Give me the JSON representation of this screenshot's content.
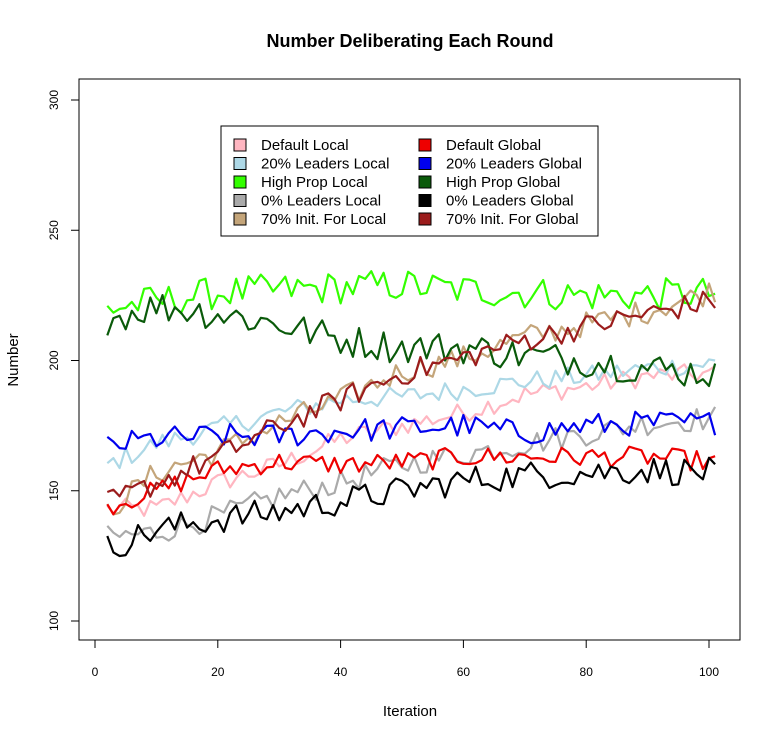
{
  "chart_data": {
    "type": "line",
    "title": "Number Deliberating Each Round",
    "xlabel": "Iteration",
    "ylabel": "Number",
    "xlim": [
      0,
      101
    ],
    "ylim": [
      100,
      300
    ],
    "x_ticks": [
      "0",
      "20",
      "40",
      "60",
      "80",
      "100"
    ],
    "y_ticks": [
      "100",
      "150",
      "200",
      "250",
      "300"
    ],
    "grid": false,
    "legend_position": "top-center",
    "series": [
      {
        "name": "Default Local",
        "color": "#ffb6c1",
        "x_range": [
          2,
          101
        ],
        "trend": [
          [
            2,
            143
          ],
          [
            10,
            143
          ],
          [
            20,
            153
          ],
          [
            30,
            160
          ],
          [
            40,
            170
          ],
          [
            50,
            175
          ],
          [
            60,
            180
          ],
          [
            70,
            187
          ],
          [
            80,
            190
          ],
          [
            90,
            194
          ],
          [
            101,
            195
          ]
        ],
        "noise": 2.5
      },
      {
        "name": "20% Leaders Local",
        "color": "#add8e6",
        "x_range": [
          2,
          101
        ],
        "trend": [
          [
            2,
            160
          ],
          [
            10,
            168
          ],
          [
            20,
            174
          ],
          [
            30,
            180
          ],
          [
            40,
            185
          ],
          [
            50,
            186
          ],
          [
            60,
            189
          ],
          [
            70,
            192
          ],
          [
            80,
            194
          ],
          [
            90,
            197
          ],
          [
            101,
            199
          ]
        ],
        "noise": 2.5
      },
      {
        "name": "High Prop Local",
        "color": "#33ff00",
        "x_range": [
          2,
          101
        ],
        "trend": [
          [
            2,
            220
          ],
          [
            20,
            226
          ],
          [
            40,
            228
          ],
          [
            50,
            229
          ],
          [
            60,
            227
          ],
          [
            70,
            226
          ],
          [
            80,
            225
          ],
          [
            90,
            225
          ],
          [
            101,
            226
          ]
        ],
        "noise": 4
      },
      {
        "name": "0% Leaders Local",
        "color": "#aaaaaa",
        "x_range": [
          2,
          101
        ],
        "trend": [
          [
            2,
            132
          ],
          [
            10,
            134
          ],
          [
            20,
            140
          ],
          [
            30,
            148
          ],
          [
            40,
            153
          ],
          [
            50,
            160
          ],
          [
            60,
            164
          ],
          [
            70,
            168
          ],
          [
            80,
            172
          ],
          [
            90,
            176
          ],
          [
            101,
            178
          ]
        ],
        "noise": 3
      },
      {
        "name": "70% Init. For Local",
        "color": "#c4a57a",
        "x_range": [
          2,
          101
        ],
        "trend": [
          [
            2,
            142
          ],
          [
            10,
            157
          ],
          [
            20,
            165
          ],
          [
            30,
            176
          ],
          [
            40,
            185
          ],
          [
            50,
            196
          ],
          [
            60,
            201
          ],
          [
            70,
            209
          ],
          [
            80,
            214
          ],
          [
            90,
            219
          ],
          [
            101,
            227
          ]
        ],
        "noise": 3
      },
      {
        "name": "Default Global",
        "color": "#ee0000",
        "x_range": [
          2,
          101
        ],
        "trend": [
          [
            2,
            144
          ],
          [
            10,
            150
          ],
          [
            20,
            158
          ],
          [
            30,
            161
          ],
          [
            40,
            160
          ],
          [
            50,
            161
          ],
          [
            60,
            163
          ],
          [
            70,
            163
          ],
          [
            80,
            163
          ],
          [
            90,
            163
          ],
          [
            101,
            161
          ]
        ],
        "noise": 2.5
      },
      {
        "name": "20% Leaders Global",
        "color": "#0000ee",
        "x_range": [
          2,
          101
        ],
        "trend": [
          [
            2,
            167
          ],
          [
            10,
            170
          ],
          [
            20,
            171
          ],
          [
            30,
            171
          ],
          [
            40,
            173
          ],
          [
            50,
            174
          ],
          [
            60,
            175
          ],
          [
            70,
            172
          ],
          [
            80,
            175
          ],
          [
            90,
            176
          ],
          [
            101,
            176
          ]
        ],
        "noise": 3
      },
      {
        "name": "High Prop Global",
        "color": "#0a5a0a",
        "x_range": [
          2,
          101
        ],
        "trend": [
          [
            2,
            216
          ],
          [
            10,
            221
          ],
          [
            20,
            218
          ],
          [
            30,
            214
          ],
          [
            40,
            208
          ],
          [
            50,
            205
          ],
          [
            60,
            205
          ],
          [
            70,
            202
          ],
          [
            80,
            200
          ],
          [
            90,
            197
          ],
          [
            101,
            195
          ]
        ],
        "noise": 4
      },
      {
        "name": "0% Leaders Global",
        "color": "#000000",
        "x_range": [
          2,
          101
        ],
        "trend": [
          [
            2,
            128
          ],
          [
            10,
            135
          ],
          [
            20,
            139
          ],
          [
            30,
            142
          ],
          [
            40,
            146
          ],
          [
            50,
            150
          ],
          [
            60,
            154
          ],
          [
            70,
            156
          ],
          [
            80,
            157
          ],
          [
            90,
            158
          ],
          [
            101,
            157
          ]
        ],
        "noise": 3.5
      },
      {
        "name": "70% Init. For Global",
        "color": "#9b1c1c",
        "x_range": [
          2,
          101
        ],
        "trend": [
          [
            2,
            145
          ],
          [
            10,
            153
          ],
          [
            20,
            163
          ],
          [
            30,
            175
          ],
          [
            40,
            185
          ],
          [
            50,
            195
          ],
          [
            60,
            201
          ],
          [
            70,
            208
          ],
          [
            80,
            213
          ],
          [
            90,
            218
          ],
          [
            101,
            223
          ]
        ],
        "noise": 3
      }
    ]
  }
}
